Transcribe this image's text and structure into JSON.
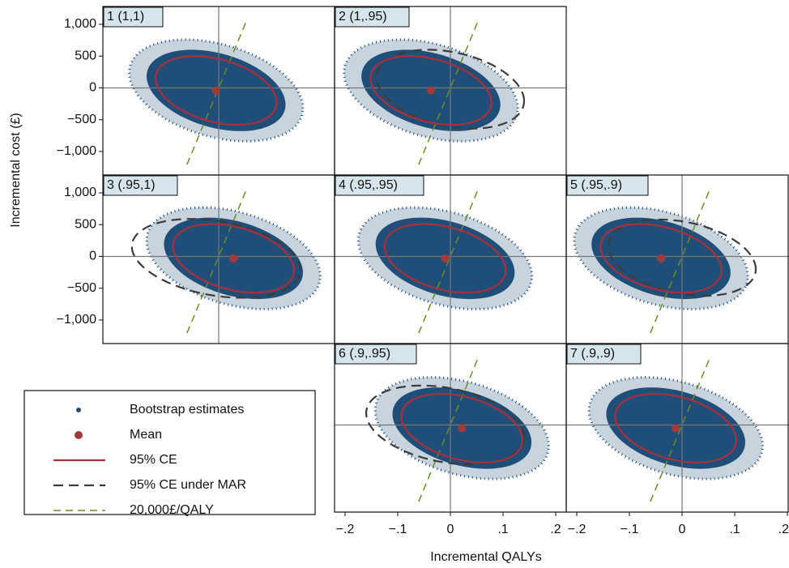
{
  "chart_data": {
    "type": "scatter",
    "xlabel": "Incremental QALYs",
    "ylabel": "Incremental cost (£)",
    "xlim": [
      -0.22,
      0.22
    ],
    "ylim": [
      -1370,
      1280
    ],
    "xticks": [
      {
        "value": -0.2,
        "label": "−.2"
      },
      {
        "value": -0.1,
        "label": "−.1"
      },
      0,
      {
        "value": 0.1,
        "label": ".1"
      },
      {
        "value": 0.2,
        "label": ".2"
      }
    ],
    "yticks": [
      {
        "value": 1000,
        "label": "1,000"
      },
      500,
      0,
      {
        "value": -500,
        "label": "−500"
      },
      {
        "value": -1000,
        "label": "−1,000"
      }
    ],
    "threshold": 20000,
    "series": [
      {
        "name": "Bootstrap estimates",
        "color": "#1f4e79"
      },
      {
        "name": "Mean",
        "color": "#a33a3a"
      },
      {
        "name": "95% CE",
        "color": "#a8303c"
      },
      {
        "name": "95% CE under MAR",
        "color": "#3c3c3c"
      },
      {
        "name": "20,000£/QALY",
        "color": "#6b8e23"
      }
    ],
    "panels": [
      {
        "title": "1 (1,1)",
        "mean": [
          -0.005,
          -40
        ],
        "ce": {
          "half_width": 0.115,
          "half_height": 540,
          "rho": -0.35
        },
        "cloud": {
          "half_width": 0.165,
          "half_height": 800
        }
      },
      {
        "title": "2 (1,.95)",
        "mean": [
          -0.037,
          -40
        ],
        "ce": {
          "half_width": 0.115,
          "half_height": 540,
          "rho": -0.35
        },
        "cloud": {
          "half_width": 0.165,
          "half_height": 800
        },
        "mar": {
          "center": [
            0.0,
            -20
          ],
          "half_width": 0.14,
          "half_height": 620,
          "rho": -0.3
        }
      },
      {
        "title": "3 (.95,1)",
        "mean": [
          0.028,
          -30
        ],
        "ce": {
          "half_width": 0.115,
          "half_height": 540,
          "rho": -0.35
        },
        "cloud": {
          "half_width": 0.165,
          "half_height": 800
        },
        "mar": {
          "center": [
            -0.005,
            -30
          ],
          "half_width": 0.16,
          "half_height": 620,
          "rho": -0.3
        }
      },
      {
        "title": "4 (.95,.95)",
        "mean": [
          -0.01,
          -30
        ],
        "ce": {
          "half_width": 0.115,
          "half_height": 540,
          "rho": -0.35
        },
        "cloud": {
          "half_width": 0.165,
          "half_height": 800
        }
      },
      {
        "title": "5 (.95,.9)",
        "mean": [
          -0.04,
          -30
        ],
        "ce": {
          "half_width": 0.115,
          "half_height": 540,
          "rho": -0.35
        },
        "cloud": {
          "half_width": 0.165,
          "half_height": 800
        },
        "mar": {
          "center": [
            0.0,
            -20
          ],
          "half_width": 0.14,
          "half_height": 600,
          "rho": -0.3
        }
      },
      {
        "title": "6 (.9,.95)",
        "mean": [
          0.022,
          -50
        ],
        "ce": {
          "half_width": 0.115,
          "half_height": 540,
          "rho": -0.35
        },
        "cloud": {
          "half_width": 0.165,
          "half_height": 800
        },
        "mar": {
          "center": [
            -0.01,
            0
          ],
          "half_width": 0.15,
          "half_height": 620,
          "rho": -0.3
        }
      },
      {
        "title": "7 (.9,.9)",
        "mean": [
          -0.012,
          -50
        ],
        "ce": {
          "half_width": 0.115,
          "half_height": 540,
          "rho": -0.35
        },
        "cloud": {
          "half_width": 0.165,
          "half_height": 800
        }
      }
    ]
  }
}
